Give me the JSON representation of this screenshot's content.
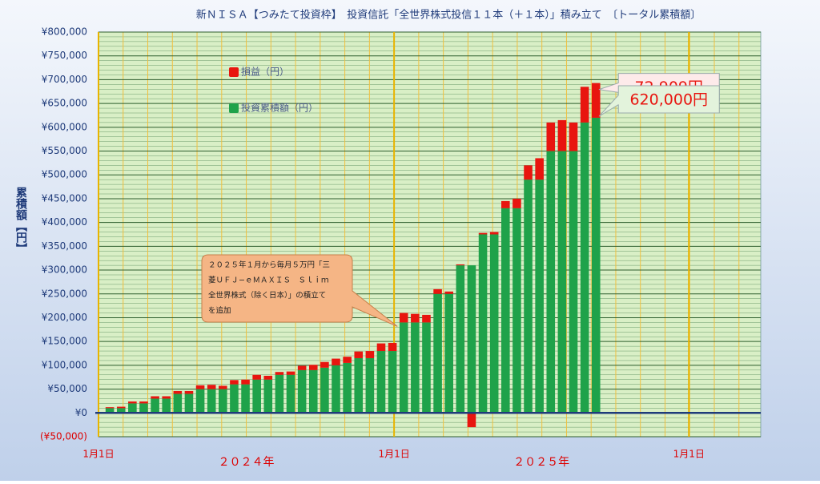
{
  "chart_data": {
    "type": "stacked-bar",
    "title": "新ＮＩＳＡ【つみたて投資枠】　投資信託「全世界株式投信１１本（＋１本）」積み立て　〔トータル累積額〕",
    "y_label": "累積額【円】",
    "x": [
      14,
      28,
      42,
      56,
      70,
      84,
      98,
      112,
      126,
      140,
      154,
      168,
      182,
      196,
      210,
      224,
      238,
      252,
      266,
      280,
      294,
      308,
      322,
      336,
      350,
      364,
      378,
      392,
      406,
      420,
      434,
      448,
      462,
      476,
      490,
      504,
      518,
      532,
      546,
      560,
      574,
      588,
      602,
      616
    ],
    "series": [
      {
        "name": "損益（円）",
        "color": "#e8150f",
        "values": [
          2000,
          3000,
          4000,
          4000,
          5000,
          5000,
          6000,
          6000,
          8000,
          9000,
          7000,
          9000,
          10000,
          10000,
          8000,
          6000,
          7000,
          9000,
          11000,
          12000,
          14000,
          13000,
          14000,
          15000,
          16000,
          17000,
          20000,
          18000,
          16000,
          10000,
          5000,
          2000,
          -30000,
          3000,
          5000,
          15000,
          20000,
          30000,
          45000,
          60000,
          65000,
          60000,
          75000,
          72909
        ],
        "value_labels": [
          null,
          null,
          null,
          null,
          null,
          null,
          null,
          null,
          null,
          null,
          null,
          null,
          null,
          null,
          null,
          null,
          null,
          null,
          null,
          null,
          null,
          null,
          null,
          null,
          null,
          null,
          null,
          null,
          null,
          null,
          null,
          null,
          null,
          null,
          null,
          null,
          null,
          null,
          null,
          null,
          null,
          null,
          null,
          "72,909円"
        ]
      },
      {
        "name": "投資累積額（円）",
        "color": "#1fa24a",
        "values": [
          10000,
          10000,
          20000,
          20000,
          30000,
          30000,
          40000,
          40000,
          50000,
          50000,
          50000,
          60000,
          60000,
          70000,
          70000,
          80000,
          80000,
          90000,
          90000,
          95000,
          100000,
          105000,
          115000,
          115000,
          130000,
          130000,
          190000,
          190000,
          190000,
          250000,
          250000,
          310000,
          310000,
          375000,
          375000,
          430000,
          430000,
          490000,
          490000,
          550000,
          550000,
          550000,
          610000,
          620000
        ],
        "value_labels": [
          null,
          null,
          null,
          null,
          null,
          null,
          null,
          null,
          null,
          null,
          null,
          null,
          null,
          null,
          null,
          null,
          null,
          null,
          null,
          null,
          null,
          null,
          null,
          null,
          null,
          null,
          null,
          null,
          null,
          null,
          null,
          null,
          null,
          null,
          null,
          null,
          null,
          null,
          null,
          null,
          null,
          null,
          null,
          "620,000円"
        ]
      }
    ],
    "xlim": [
      0,
      820
    ],
    "xticks": [
      {
        "value": 0,
        "label": "1月1日"
      },
      {
        "value": 366,
        "label": "1月1日"
      },
      {
        "value": 731,
        "label": "1月1日"
      }
    ],
    "year_labels": [
      "２０２４年",
      "２０２５年"
    ],
    "ylim": [
      -50000,
      800000
    ],
    "yticks": [
      {
        "value": -50000,
        "label": "(¥50,000)"
      },
      {
        "value": 0,
        "label": "¥0"
      },
      {
        "value": 50000,
        "label": "¥50,000"
      },
      {
        "value": 100000,
        "label": "¥100,000"
      },
      {
        "value": 150000,
        "label": "¥150,000"
      },
      {
        "value": 200000,
        "label": "¥200,000"
      },
      {
        "value": 250000,
        "label": "¥250,000"
      },
      {
        "value": 300000,
        "label": "¥300,000"
      },
      {
        "value": 350000,
        "label": "¥350,000"
      },
      {
        "value": 400000,
        "label": "¥400,000"
      },
      {
        "value": 450000,
        "label": "¥450,000"
      },
      {
        "value": 500000,
        "label": "¥500,000"
      },
      {
        "value": 550000,
        "label": "¥550,000"
      },
      {
        "value": 600000,
        "label": "¥600,000"
      },
      {
        "value": 650000,
        "label": "¥650,000"
      },
      {
        "value": 700000,
        "label": "¥700,000"
      },
      {
        "value": 750000,
        "label": "¥750,000"
      },
      {
        "value": 800000,
        "label": "¥800,000"
      }
    ],
    "grid": true,
    "legend": "top-left",
    "annotation": [
      "２０２５年１月から毎月５万円「三",
      "菱ＵＦＪ−ｅＭＡＸＩＳ　Ｓｌｉｍ",
      "全世界株式（除く日本）」の積立て",
      "を追加"
    ]
  }
}
